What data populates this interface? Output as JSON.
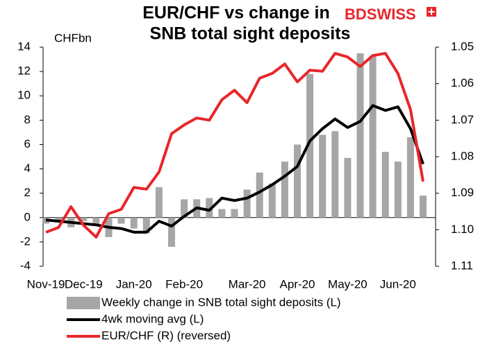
{
  "chart_data": {
    "type": "combo",
    "title": [
      "EUR/CHF vs change in",
      "SNB total sight deposits"
    ],
    "brand": "BDSWISS",
    "y_axis_label": "CHFbn",
    "categories": [
      "Nov-19",
      null,
      null,
      "Dec-19",
      null,
      null,
      null,
      "Jan-20",
      null,
      null,
      null,
      "Feb-20",
      null,
      null,
      null,
      null,
      "Mar-20",
      null,
      null,
      null,
      "Apr-20",
      null,
      null,
      null,
      "May-20",
      null,
      null,
      null,
      "Jun-20",
      null,
      null
    ],
    "ylim": [
      -4,
      14
    ],
    "yticks": [
      -4,
      -2,
      0,
      2,
      4,
      6,
      8,
      10,
      12,
      14
    ],
    "y2lim": [
      1.05,
      1.11
    ],
    "y2ticks": [
      1.05,
      1.06,
      1.07,
      1.08,
      1.09,
      {
        "value": 1.1,
        "label": "1.10"
      },
      1.11
    ],
    "y2_reversed": true,
    "series": [
      {
        "name": "Weekly change in SNB total sight deposits (L)",
        "type": "bar",
        "color": "#a6a6a6",
        "values": [
          -0.5,
          -0.3,
          -0.8,
          -0.3,
          -0.7,
          -1.6,
          -0.5,
          -0.9,
          -1.3,
          2.5,
          -2.4,
          1.5,
          1.5,
          1.6,
          0.7,
          0.7,
          2.3,
          3.7,
          2.8,
          4.6,
          6.0,
          11.8,
          6.8,
          7.1,
          4.9,
          13.5,
          13.3,
          5.4,
          4.6,
          6.6,
          1.8
        ]
      },
      {
        "name": "4wk moving avg (L)",
        "type": "line",
        "color": "#000000",
        "values": [
          -0.2,
          -0.3,
          -0.4,
          -0.5,
          -0.6,
          -0.8,
          -0.9,
          -1.2,
          -1.2,
          -0.3,
          -0.7,
          0.1,
          0.8,
          0.6,
          1.6,
          1.4,
          1.6,
          2.1,
          2.7,
          3.4,
          4.2,
          6.3,
          7.3,
          8.1,
          7.4,
          7.9,
          9.2,
          8.8,
          9.1,
          7.3,
          4.4
        ]
      },
      {
        "name": "EUR/CHF (R) (reversed)",
        "type": "line",
        "axis": "y2",
        "color": "#e8262a",
        "values": [
          1.1007,
          1.0994,
          1.0937,
          1.0988,
          1.102,
          1.0956,
          1.0944,
          1.0884,
          1.0889,
          1.0842,
          1.0737,
          1.0713,
          1.0694,
          1.07,
          1.0644,
          1.0618,
          1.0652,
          1.0585,
          1.0572,
          1.0546,
          1.0595,
          1.0563,
          1.0566,
          1.0517,
          1.0527,
          1.0553,
          1.0523,
          1.0517,
          1.0572,
          1.0671,
          1.0868
        ]
      }
    ]
  }
}
